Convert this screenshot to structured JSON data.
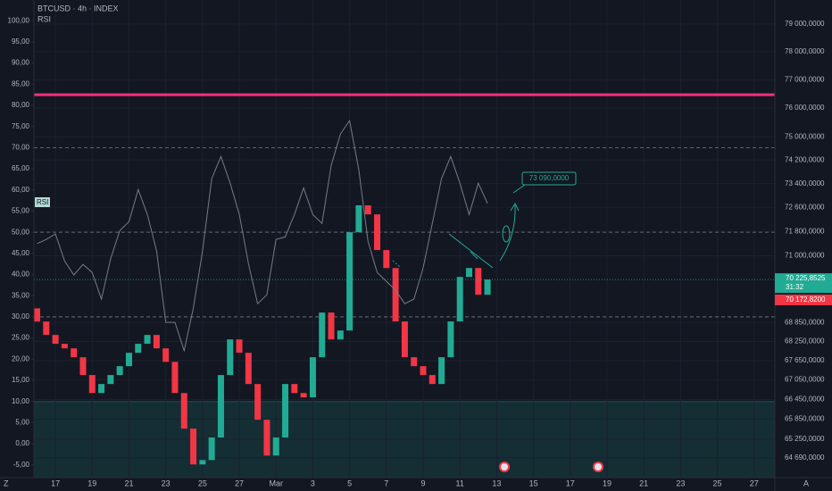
{
  "chart_data": {
    "type": "candlestick",
    "title": "BTCUSD · 4h · INDEX",
    "x": [
      -1,
      -0.5,
      0,
      0.5,
      1,
      1.5,
      2,
      2.5,
      3,
      3.5,
      4,
      4.5,
      5,
      5.5,
      6,
      6.5,
      7,
      7.5,
      8,
      8.5,
      9,
      9.5,
      10,
      10.5,
      11,
      11.5,
      12,
      12.5,
      13,
      13.5,
      14,
      14.5,
      15,
      15.5,
      16,
      16.5,
      17,
      17.5,
      18,
      18.5,
      19,
      19.5,
      20,
      20.5,
      21,
      21.5,
      22,
      22.5,
      23,
      23.5
    ],
    "open": [
      69300,
      68880,
      68456,
      68177,
      68034,
      67756,
      67202,
      66647,
      66925,
      67202,
      67478,
      67895,
      68177,
      68456,
      68034,
      67612,
      66647,
      65563,
      64490,
      64620,
      65295,
      67202,
      68314,
      67895,
      66925,
      65832,
      64755,
      65295,
      66925,
      66647,
      66513,
      67756,
      69165,
      68314,
      68595,
      71773,
      72668,
      72365,
      71186,
      70599,
      68883,
      67756,
      67478,
      67202,
      66925,
      67756,
      68883,
      70309,
      70600,
      69735
    ],
    "close": [
      68880,
      68456,
      68177,
      68034,
      67756,
      67202,
      66647,
      66925,
      67202,
      67478,
      67895,
      68177,
      68456,
      68034,
      67612,
      66647,
      65563,
      64490,
      64620,
      65295,
      67202,
      68314,
      67895,
      66925,
      65832,
      64755,
      65295,
      66925,
      66647,
      66513,
      67756,
      69165,
      68314,
      68595,
      71773,
      72668,
      72365,
      71186,
      70599,
      68883,
      67756,
      67478,
      67202,
      66925,
      67756,
      68883,
      70309,
      70600,
      69735,
      70225.8525
    ],
    "up_color": "#22ab94",
    "down_color": "#f23645",
    "log_scale": true,
    "y2lim": [
      64100,
      79880
    ],
    "y2ticks": [
      {
        "value": 79000,
        "label": "79 000,0000"
      },
      {
        "value": 78000,
        "label": "78 000,0000"
      },
      {
        "value": 77000,
        "label": "77 000,0000"
      },
      {
        "value": 76000,
        "label": "76 000,0000"
      },
      {
        "value": 75000,
        "label": "75 000,0000"
      },
      {
        "value": 74200,
        "label": "74 200,0000"
      },
      {
        "value": 73400,
        "label": "73 400,0000"
      },
      {
        "value": 72600,
        "label": "72 600,0000"
      },
      {
        "value": 71800,
        "label": "71 800,0000"
      },
      {
        "value": 71000,
        "label": "71 000,0000"
      },
      {
        "value": 68850,
        "label": "68 850,0000"
      },
      {
        "value": 68250,
        "label": "68 250,0000"
      },
      {
        "value": 67650,
        "label": "67 650,0000"
      },
      {
        "value": 67050,
        "label": "67 050,0000"
      },
      {
        "value": 66450,
        "label": "66 450,0000"
      },
      {
        "value": 65850,
        "label": "65 850,0000"
      },
      {
        "value": 65250,
        "label": "65 250,0000"
      },
      {
        "value": 64690,
        "label": "64 690,0000"
      }
    ],
    "xlim": [
      -1.17,
      39.13
    ],
    "xticks": [
      {
        "value": 0,
        "label": "17"
      },
      {
        "value": 2,
        "label": "19"
      },
      {
        "value": 4,
        "label": "21"
      },
      {
        "value": 6,
        "label": "23"
      },
      {
        "value": 8,
        "label": "25"
      },
      {
        "value": 10,
        "label": "27"
      },
      {
        "value": 12,
        "label": "Mar"
      },
      {
        "value": 14,
        "label": "3"
      },
      {
        "value": 16,
        "label": "5"
      },
      {
        "value": 18,
        "label": "7"
      },
      {
        "value": 20,
        "label": "9"
      },
      {
        "value": 22,
        "label": "11"
      },
      {
        "value": 24,
        "label": "13"
      },
      {
        "value": 26,
        "label": "15"
      },
      {
        "value": 28,
        "label": "17"
      },
      {
        "value": 30,
        "label": "19"
      },
      {
        "value": 32,
        "label": "21"
      },
      {
        "value": 34,
        "label": "23"
      },
      {
        "value": 36,
        "label": "25"
      },
      {
        "value": 38,
        "label": "27"
      }
    ],
    "series": [
      {
        "name": "RSI",
        "color": "#787b86",
        "values": [
          47.3,
          48.3,
          49.6,
          43.2,
          39.9,
          42.4,
          40.5,
          34.2,
          43.7,
          50.4,
          52.5,
          60.1,
          54.2,
          45.6,
          28.7,
          28.7,
          22.0,
          32.1,
          45.6,
          62.7,
          67.9,
          61.6,
          54.2,
          42.6,
          33.1,
          35.2,
          48.3,
          48.9,
          54.2,
          60.5,
          54.2,
          52.1,
          65.8,
          73.2,
          76.4,
          64.8,
          47.9,
          40.5,
          38.4,
          36.3,
          33.1,
          34.2,
          41.6,
          52.1,
          62.7,
          67.9,
          61.6,
          54.2,
          61.6,
          56.8
        ]
      }
    ],
    "ylim": [
      -8,
      104.9
    ],
    "yticks": [
      {
        "value": 100,
        "label": "100,00"
      },
      {
        "value": 95,
        "label": "95,00"
      },
      {
        "value": 90,
        "label": "90,00"
      },
      {
        "value": 85,
        "label": "85,00"
      },
      {
        "value": 80,
        "label": "80,00"
      },
      {
        "value": 75,
        "label": "75,00"
      },
      {
        "value": 70,
        "label": "70,00"
      },
      {
        "value": 65,
        "label": "65,00"
      },
      {
        "value": 60,
        "label": "60,00"
      },
      {
        "value": 55,
        "label": "55,00"
      },
      {
        "value": 50,
        "label": "50,00"
      },
      {
        "value": 45,
        "label": "45,00"
      },
      {
        "value": 40,
        "label": "40,00"
      },
      {
        "value": 35,
        "label": "35,00"
      },
      {
        "value": 30,
        "label": "30,00"
      },
      {
        "value": 25,
        "label": "25,00"
      },
      {
        "value": 20,
        "label": "20,00"
      },
      {
        "value": 15,
        "label": "15,00"
      },
      {
        "value": 10,
        "label": "10,00"
      },
      {
        "value": 5,
        "label": "5,00"
      },
      {
        "value": 0,
        "label": "0,00"
      },
      {
        "value": -5,
        "label": "-5,00"
      }
    ],
    "rsi_levels": [
      70,
      50,
      30
    ],
    "highlight_line": {
      "value": 82.5,
      "color": "#f7317a"
    },
    "zone_top": 10,
    "annotation": {
      "value": 73090,
      "label": "73 090,0000"
    },
    "last_price": {
      "value": 70225.8525,
      "label": "70 225,8525"
    },
    "countdown": "31:32",
    "prev_price": {
      "value": 70172.82,
      "label": "70 172,8200"
    },
    "corner_left": "Z",
    "corner_right": "A"
  }
}
